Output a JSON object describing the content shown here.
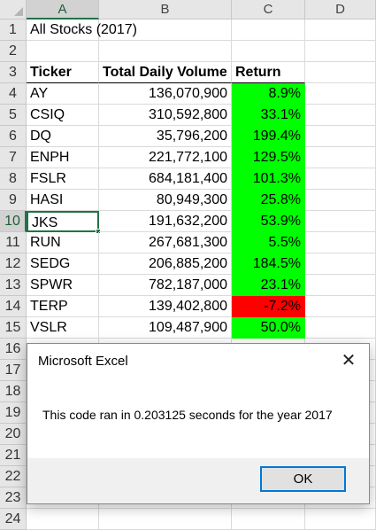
{
  "columns": [
    "A",
    "B",
    "C",
    "D"
  ],
  "selected_column": "A",
  "row_numbers": [
    "1",
    "2",
    "3",
    "4",
    "5",
    "6",
    "7",
    "8",
    "9",
    "10",
    "11",
    "12",
    "13",
    "14",
    "15",
    "16",
    "17",
    "18",
    "19",
    "20",
    "21",
    "22",
    "23",
    "24"
  ],
  "selected_row": "10",
  "title_cell": "All Stocks (2017)",
  "headers": {
    "ticker": "Ticker",
    "volume": "Total Daily Volume",
    "return": "Return"
  },
  "rows": [
    {
      "ticker": "AY",
      "volume": "136,070,900",
      "return": "8.9%",
      "status": "positive"
    },
    {
      "ticker": "CSIQ",
      "volume": "310,592,800",
      "return": "33.1%",
      "status": "positive"
    },
    {
      "ticker": "DQ",
      "volume": "35,796,200",
      "return": "199.4%",
      "status": "positive"
    },
    {
      "ticker": "ENPH",
      "volume": "221,772,100",
      "return": "129.5%",
      "status": "positive"
    },
    {
      "ticker": "FSLR",
      "volume": "684,181,400",
      "return": "101.3%",
      "status": "positive"
    },
    {
      "ticker": "HASI",
      "volume": "80,949,300",
      "return": "25.8%",
      "status": "positive"
    },
    {
      "ticker": "JKS",
      "volume": "191,632,200",
      "return": "53.9%",
      "status": "positive"
    },
    {
      "ticker": "RUN",
      "volume": "267,681,300",
      "return": "5.5%",
      "status": "positive"
    },
    {
      "ticker": "SEDG",
      "volume": "206,885,200",
      "return": "184.5%",
      "status": "positive"
    },
    {
      "ticker": "SPWR",
      "volume": "782,187,000",
      "return": "23.1%",
      "status": "positive"
    },
    {
      "ticker": "TERP",
      "volume": "139,402,800",
      "return": "-7.2%",
      "status": "negative"
    },
    {
      "ticker": "VSLR",
      "volume": "109,487,900",
      "return": "50.0%",
      "status": "positive"
    }
  ],
  "colors": {
    "positive": "#00ff00",
    "negative": "#ff0000",
    "selection": "#217346"
  },
  "dialog": {
    "title": "Microsoft Excel",
    "message": "This code ran in 0.203125 seconds for the year 2017",
    "ok_label": "OK",
    "close_icon": "close-icon"
  }
}
